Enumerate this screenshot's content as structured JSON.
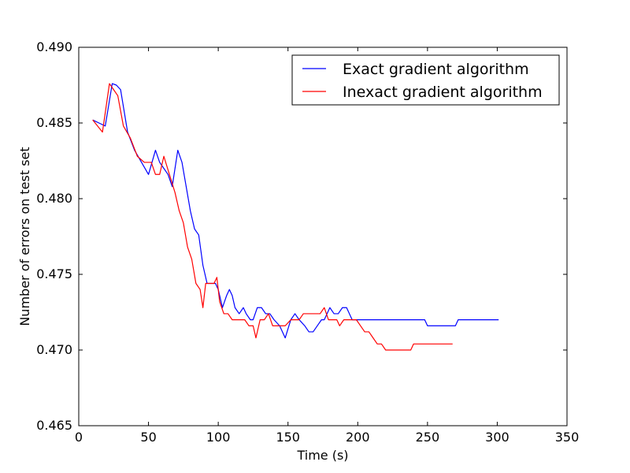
{
  "chart_data": {
    "type": "line",
    "title": "",
    "xlabel": "Time (s)",
    "ylabel": "Number of errors on test set",
    "xlim": [
      0,
      350
    ],
    "ylim": [
      0.465,
      0.49
    ],
    "xticks": [
      0,
      50,
      100,
      150,
      200,
      250,
      300,
      350
    ],
    "xtick_labels": [
      "0",
      "50",
      "100",
      "150",
      "200",
      "250",
      "300",
      "350"
    ],
    "yticks": [
      0.465,
      0.47,
      0.475,
      0.48,
      0.485,
      0.49
    ],
    "ytick_labels": [
      "0.465",
      "0.470",
      "0.475",
      "0.480",
      "0.485",
      "0.490"
    ],
    "grid": false,
    "legend_position": "top-right",
    "series": [
      {
        "name": "Exact gradient algorithm",
        "color": "#0000ff",
        "x": [
          10,
          19,
          24,
          27,
          30,
          35,
          40,
          45,
          50,
          55,
          58,
          61,
          64,
          67,
          71,
          74,
          77,
          80,
          83,
          86,
          89,
          92,
          95,
          98,
          100,
          103,
          106,
          108,
          110,
          112,
          115,
          118,
          120,
          123,
          125,
          128,
          131,
          134,
          137,
          140,
          144,
          148,
          152,
          155,
          158,
          162,
          165,
          168,
          171,
          174,
          176,
          180,
          183,
          186,
          189,
          192,
          196,
          200,
          220,
          248,
          250,
          260,
          270,
          272,
          285,
          301
        ],
        "y": [
          0.4852,
          0.4848,
          0.4876,
          0.4875,
          0.4872,
          0.4844,
          0.4832,
          0.4824,
          0.4816,
          0.4832,
          0.4824,
          0.482,
          0.4816,
          0.4808,
          0.4832,
          0.4824,
          0.4808,
          0.4792,
          0.478,
          0.4776,
          0.4756,
          0.4744,
          0.4744,
          0.4744,
          0.474,
          0.4728,
          0.4736,
          0.474,
          0.4736,
          0.4728,
          0.4724,
          0.4728,
          0.4724,
          0.472,
          0.472,
          0.4728,
          0.4728,
          0.4724,
          0.4724,
          0.472,
          0.4716,
          0.4708,
          0.472,
          0.4724,
          0.472,
          0.4716,
          0.4712,
          0.4712,
          0.4716,
          0.472,
          0.472,
          0.4728,
          0.4724,
          0.4724,
          0.4728,
          0.4728,
          0.472,
          0.472,
          0.472,
          0.472,
          0.4716,
          0.4716,
          0.4716,
          0.472,
          0.472,
          0.472
        ]
      },
      {
        "name": "Inexact gradient algorithm",
        "color": "#ff0000",
        "x": [
          10,
          17,
          22,
          25,
          28,
          32,
          37,
          42,
          47,
          52,
          55,
          58,
          61,
          65,
          69,
          72,
          75,
          78,
          81,
          84,
          87,
          89,
          91,
          94,
          97,
          99,
          101,
          104,
          107,
          110,
          113,
          116,
          119,
          122,
          125,
          127,
          130,
          133,
          136,
          139,
          142,
          145,
          148,
          152,
          155,
          158,
          161,
          164,
          167,
          170,
          173,
          176,
          179,
          182,
          185,
          187,
          190,
          193,
          196,
          199,
          202,
          205,
          208,
          211,
          214,
          217,
          220,
          223,
          235,
          238,
          240,
          245,
          250,
          260,
          268
        ],
        "y": [
          0.4852,
          0.4844,
          0.4876,
          0.4872,
          0.4868,
          0.4848,
          0.484,
          0.4828,
          0.4824,
          0.4824,
          0.4816,
          0.4816,
          0.4828,
          0.4816,
          0.4804,
          0.4792,
          0.4784,
          0.4768,
          0.476,
          0.4744,
          0.474,
          0.4728,
          0.4744,
          0.4744,
          0.4744,
          0.4748,
          0.4732,
          0.4724,
          0.4724,
          0.472,
          0.472,
          0.472,
          0.472,
          0.4716,
          0.4716,
          0.4708,
          0.472,
          0.472,
          0.4724,
          0.4716,
          0.4716,
          0.4716,
          0.4716,
          0.472,
          0.472,
          0.472,
          0.4724,
          0.4724,
          0.4724,
          0.4724,
          0.4724,
          0.4728,
          0.472,
          0.472,
          0.472,
          0.4716,
          0.472,
          0.472,
          0.472,
          0.472,
          0.4716,
          0.4712,
          0.4712,
          0.4708,
          0.4704,
          0.4704,
          0.47,
          0.47,
          0.47,
          0.47,
          0.4704,
          0.4704,
          0.4704,
          0.4704,
          0.4704
        ]
      }
    ]
  }
}
